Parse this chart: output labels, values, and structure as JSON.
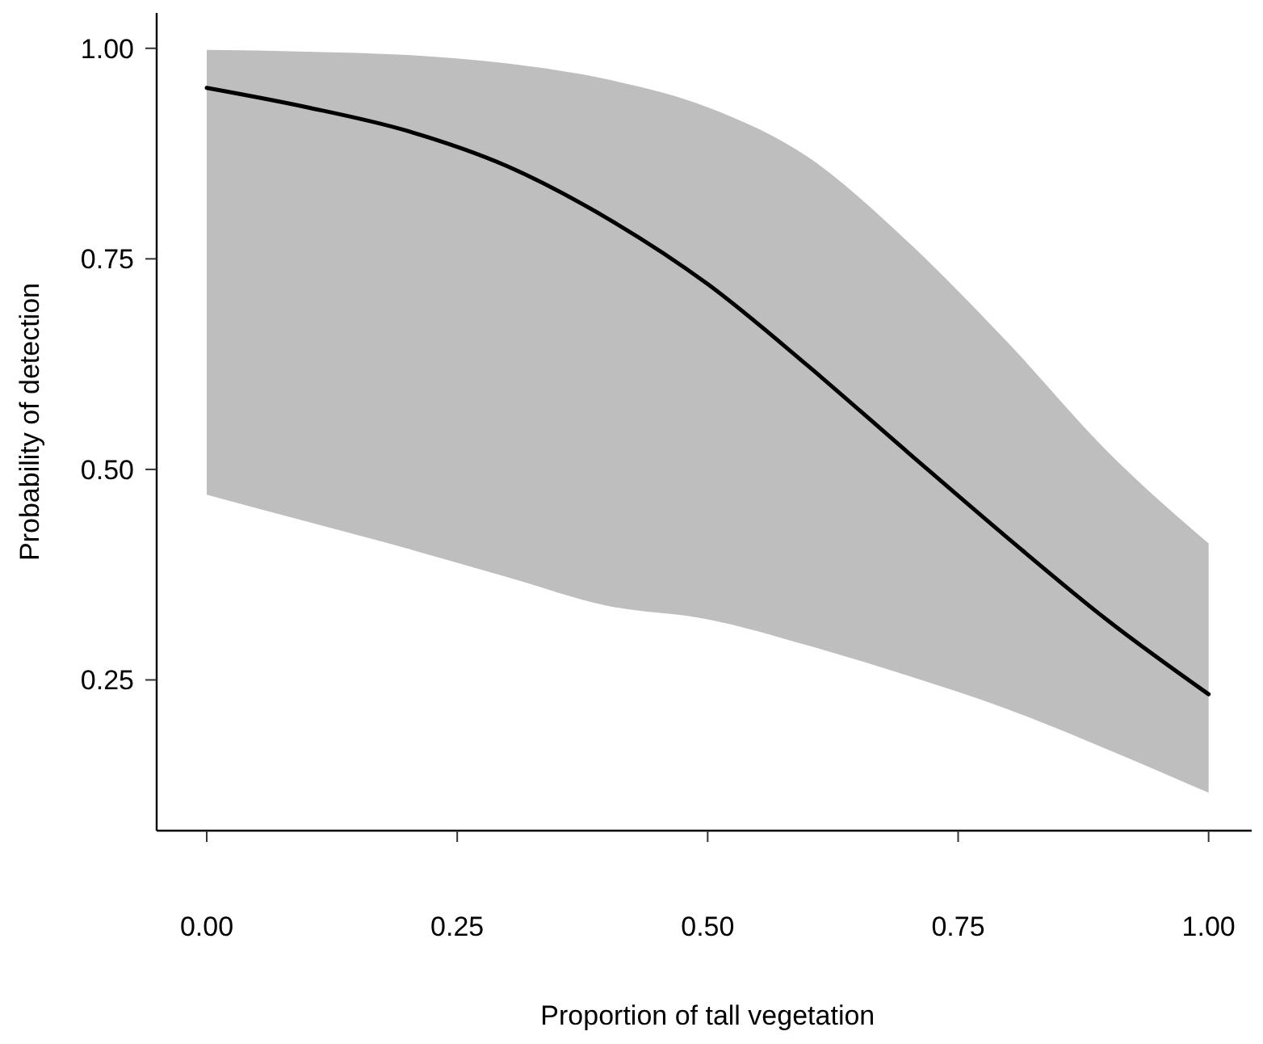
{
  "chart_data": {
    "type": "line",
    "xlabel": "Proportion of tall vegetation",
    "ylabel": "Probability of detection",
    "x": [
      0,
      0.1,
      0.2,
      0.3,
      0.4,
      0.5,
      0.6,
      0.7,
      0.8,
      0.9,
      1.0
    ],
    "series": [
      {
        "color": "#000000",
        "values": [
          0.953,
          0.93,
          0.902,
          0.86,
          0.798,
          0.72,
          0.623,
          0.52,
          0.418,
          0.32,
          0.233
        ],
        "lower": [
          0.47,
          0.438,
          0.406,
          0.372,
          0.338,
          0.322,
          0.291,
          0.255,
          0.215,
          0.167,
          0.116
        ],
        "upper": [
          0.998,
          0.996,
          0.992,
          0.982,
          0.963,
          0.93,
          0.871,
          0.77,
          0.65,
          0.52,
          0.412
        ]
      }
    ],
    "xlim": [
      -0.05,
      1.043
    ],
    "ylim": [
      0.071,
      1.042
    ],
    "xticks": [
      {
        "value": 0,
        "label": "0.00"
      },
      {
        "value": 0.25,
        "label": "0.25"
      },
      {
        "value": 0.5,
        "label": "0.50"
      },
      {
        "value": 0.75,
        "label": "0.75"
      },
      {
        "value": 1,
        "label": "1.00"
      }
    ],
    "yticks": [
      {
        "value": 0.25,
        "label": "0.25"
      },
      {
        "value": 0.5,
        "label": "0.50"
      },
      {
        "value": 0.75,
        "label": "0.75"
      },
      {
        "value": 1,
        "label": "1.00"
      }
    ],
    "grid": false,
    "marker": "none",
    "line_style": "solid"
  }
}
